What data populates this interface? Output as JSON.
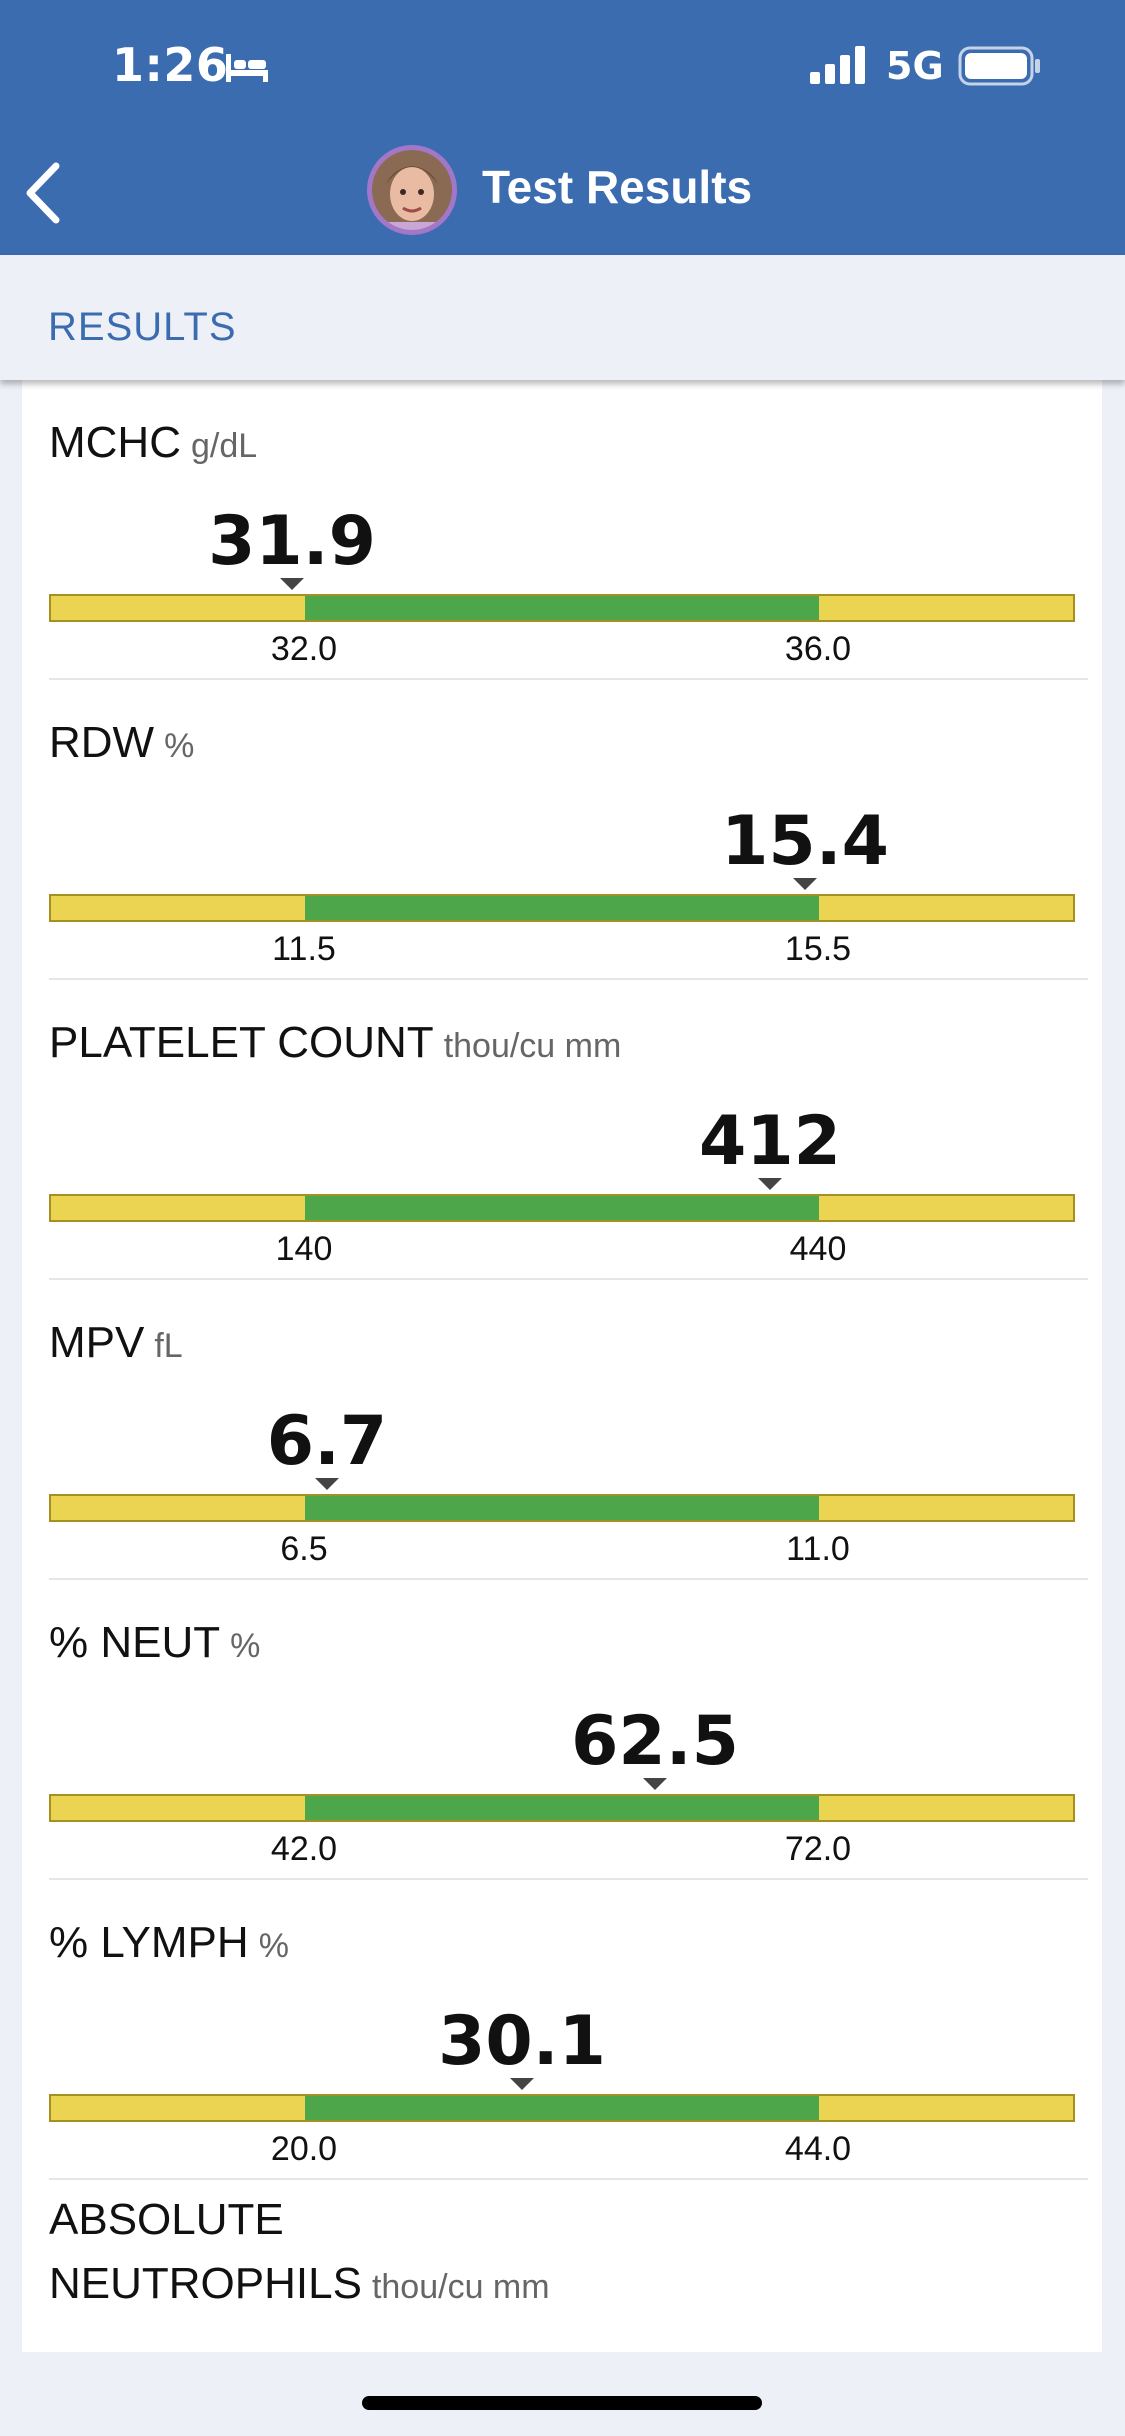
{
  "status_bar": {
    "time": "1:26",
    "network": "5G"
  },
  "nav": {
    "title": "Test Results"
  },
  "section": {
    "label": "RESULTS"
  },
  "colors": {
    "brand": "#3b6cb0",
    "normal_range": "#4ea64a",
    "out_of_range": "#ecd453"
  },
  "results": [
    {
      "name": "MCHC",
      "unit": "g/dL",
      "value": "31.9",
      "low": "32.0",
      "high": "36.0"
    },
    {
      "name": "RDW",
      "unit": "%",
      "value": "15.4",
      "low": "11.5",
      "high": "15.5"
    },
    {
      "name": "PLATELET COUNT",
      "unit": "thou/cu mm",
      "value": "412",
      "low": "140",
      "high": "440"
    },
    {
      "name": "MPV",
      "unit": "fL",
      "value": "6.7",
      "low": "6.5",
      "high": "11.0"
    },
    {
      "name": "% NEUT",
      "unit": "%",
      "value": "62.5",
      "low": "42.0",
      "high": "72.0"
    },
    {
      "name": "% LYMPH",
      "unit": "%",
      "value": "30.1",
      "low": "20.0",
      "high": "44.0"
    }
  ],
  "partial_result": {
    "name_line1": "ABSOLUTE",
    "name_line2": "NEUTROPHILS",
    "unit": "thou/cu mm"
  }
}
